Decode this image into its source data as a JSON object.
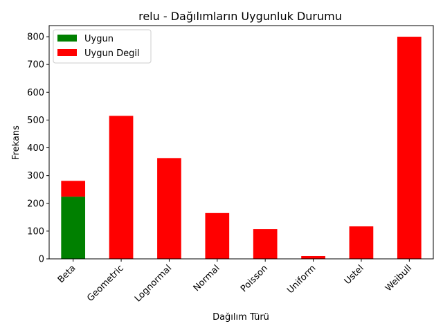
{
  "chart_data": {
    "type": "bar",
    "stacked": true,
    "title": "relu - Dağılımların Uygunluk Durumu",
    "xlabel": "Dağılım Türü",
    "ylabel": "Frekans",
    "categories": [
      "Beta",
      "Geometric",
      "Lognormal",
      "Normal",
      "Poisson",
      "Uniform",
      "Ustel",
      "Weibull"
    ],
    "series": [
      {
        "name": "Uygun",
        "color": "#008000",
        "values": [
          224,
          0,
          0,
          0,
          0,
          0,
          0,
          0
        ]
      },
      {
        "name": "Uygun Degil",
        "color": "#ff0000",
        "values": [
          57,
          515,
          363,
          165,
          107,
          10,
          117,
          800
        ]
      }
    ],
    "ylim": [
      0,
      840
    ],
    "yticks": [
      0,
      100,
      200,
      300,
      400,
      500,
      600,
      700,
      800
    ],
    "grid": false,
    "legend_position": "top-left",
    "x_tick_rotation": 45
  }
}
